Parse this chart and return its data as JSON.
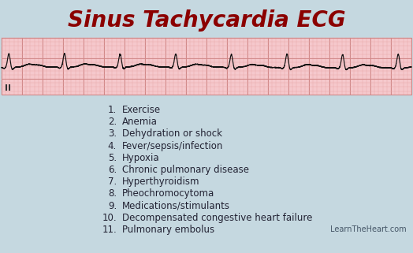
{
  "title": "Sinus Tachycardia ECG",
  "title_color": "#8B0000",
  "background_color": "#c5d8e0",
  "ecg_bg_color": "#f5c8cc",
  "ecg_grid_minor_color": "#e8a8aa",
  "ecg_grid_major_color": "#d08888",
  "ecg_line_color": "#111111",
  "lead_label": "II",
  "items": [
    "Exercise",
    "Anemia",
    "Dehydration or shock",
    "Fever/sepsis/infection",
    "Hypoxia",
    "Chronic pulmonary disease",
    "Hyperthyroidism",
    "Pheochromocytoma",
    "Medications/stimulants",
    "Decompensated congestive heart failure",
    "Pulmonary embolus"
  ],
  "watermark": "LearnTheHeart.com",
  "text_color": "#222233",
  "title_fontsize": 20,
  "list_fontsize": 8.5,
  "watermark_fontsize": 7
}
